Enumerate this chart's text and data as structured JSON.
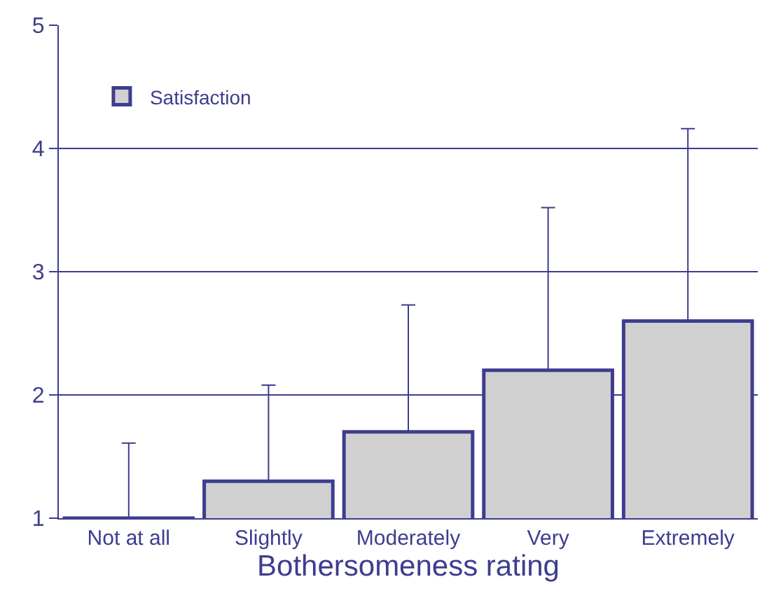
{
  "chart_data": {
    "type": "bar",
    "xlabel": "Bothersomeness rating",
    "categories": [
      "Not at all",
      "Slightly",
      "Moderately",
      "Very",
      "Extremely"
    ],
    "series": [
      {
        "name": "Satisfaction",
        "color": "#d0d0d0",
        "values": [
          1.0,
          1.3,
          1.7,
          2.2,
          2.6
        ],
        "errors": [
          [
            1.0,
            1.61
          ],
          [
            1.3,
            2.08
          ],
          [
            1.7,
            2.73
          ],
          [
            2.2,
            3.52
          ],
          [
            2.6,
            4.16
          ]
        ]
      }
    ],
    "ylim": [
      1,
      5
    ],
    "yticks": [
      1,
      2,
      3,
      4,
      5
    ],
    "grid": "y",
    "legend": "top left"
  }
}
